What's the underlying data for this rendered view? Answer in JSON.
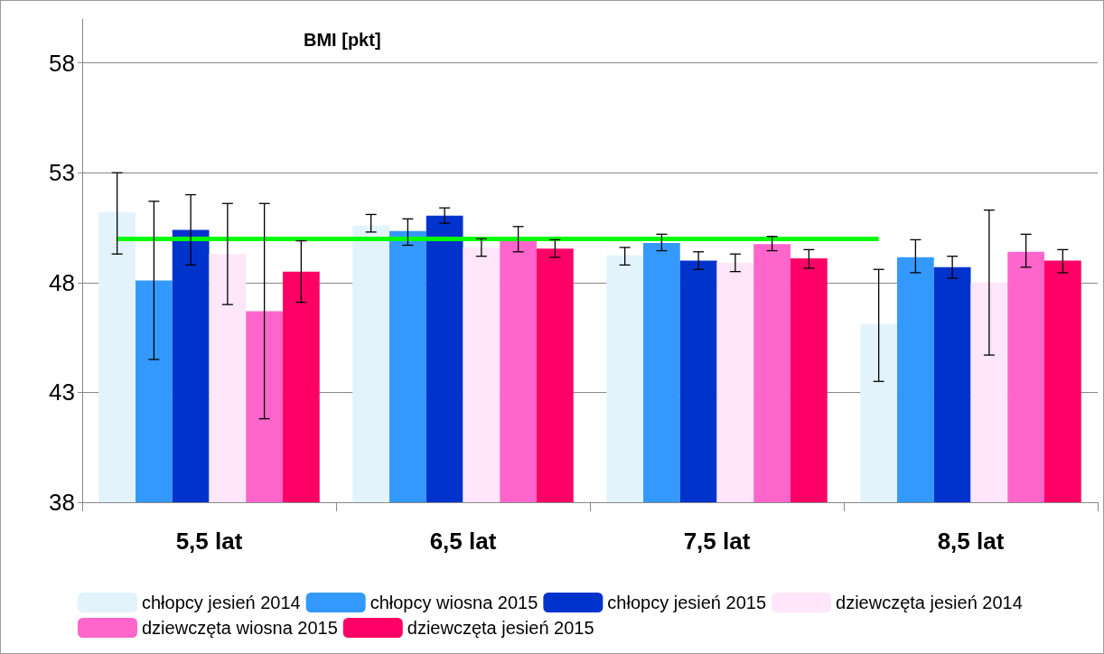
{
  "chart_data": {
    "type": "bar",
    "title": "BMI [pkt]",
    "categories": [
      "5,5 lat",
      "6,5 lat",
      "7,5 lat",
      "8,5 lat"
    ],
    "series": [
      {
        "name": "chłopcy jesień 2014",
        "color": "#e3f3fc",
        "values": [
          51.2,
          50.6,
          49.25,
          46.1
        ],
        "errors": [
          [
            49.3,
            53.0
          ],
          [
            50.3,
            51.1
          ],
          [
            48.8,
            49.6
          ],
          [
            43.5,
            48.6
          ]
        ]
      },
      {
        "name": "chłopcy wiosna 2015",
        "color": "#3399ff",
        "values": [
          48.1,
          50.35,
          49.8,
          49.15
        ],
        "errors": [
          [
            44.5,
            51.7
          ],
          [
            49.7,
            50.9
          ],
          [
            49.45,
            50.2
          ],
          [
            48.45,
            49.95
          ]
        ]
      },
      {
        "name": "chłopcy jesień 2015",
        "color": "#0033cc",
        "values": [
          50.4,
          51.05,
          49.0,
          48.7
        ],
        "errors": [
          [
            48.8,
            52.0
          ],
          [
            50.7,
            51.4
          ],
          [
            48.6,
            49.4
          ],
          [
            48.2,
            49.2
          ]
        ]
      },
      {
        "name": "dziewczęta jesień 2014",
        "color": "#ffe6fa",
        "values": [
          49.3,
          49.6,
          48.9,
          48.0
        ],
        "errors": [
          [
            47.0,
            51.6
          ],
          [
            49.2,
            50.0
          ],
          [
            48.5,
            49.3
          ],
          [
            44.7,
            51.3
          ]
        ]
      },
      {
        "name": "dziewczęta wiosna 2015",
        "color": "#ff66cc",
        "values": [
          46.7,
          49.95,
          49.75,
          49.4
        ],
        "errors": [
          [
            41.8,
            51.6
          ],
          [
            49.4,
            50.55
          ],
          [
            49.45,
            50.1
          ],
          [
            48.7,
            50.2
          ]
        ]
      },
      {
        "name": "dziewczęta jesień 2015",
        "color": "#ff0066",
        "values": [
          48.5,
          49.55,
          49.1,
          49.0
        ],
        "errors": [
          [
            47.1,
            49.9
          ],
          [
            49.15,
            49.95
          ],
          [
            48.65,
            49.5
          ],
          [
            48.45,
            49.5
          ]
        ]
      }
    ],
    "ylim": [
      38,
      60
    ],
    "yticks": [
      38,
      43,
      48,
      53,
      58
    ],
    "grid": "y",
    "legend": "bottom",
    "ref_lines": [
      {
        "axis": "y",
        "value": 50,
        "label": null,
        "color": "#00ff00"
      }
    ]
  }
}
